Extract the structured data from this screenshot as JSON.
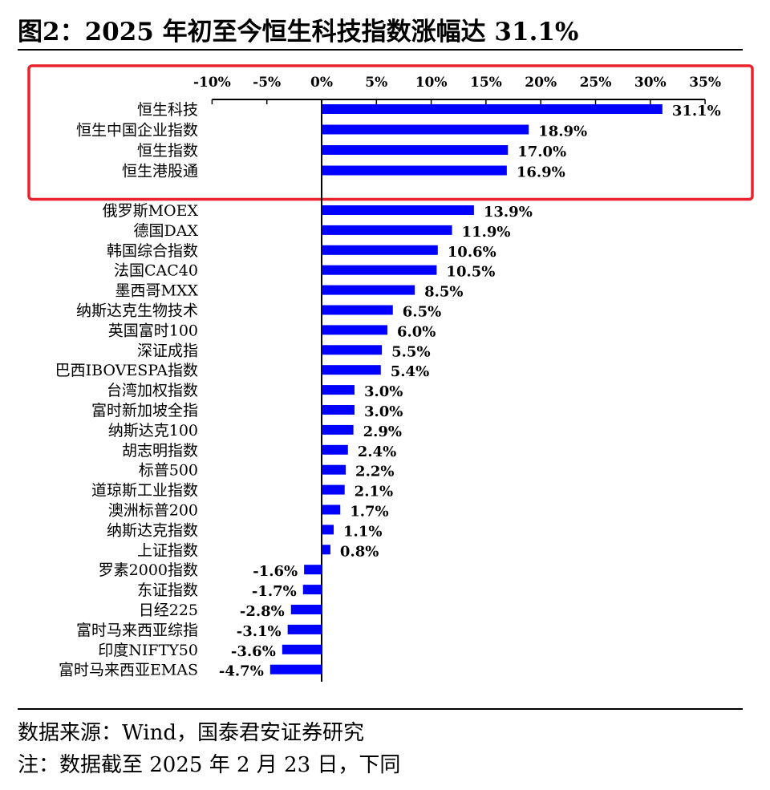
{
  "title": "图2：2025 年初至今恒生科技指数涨幅达 31.1%",
  "source": "数据来源：Wind，国泰君安证券研究",
  "note": "注：数据截至 2025 年 2 月 23 日，下同",
  "colors": {
    "bar": "#0000ff",
    "highlight_box": "#e8232b",
    "axis": "#000000"
  },
  "chart_data": {
    "type": "bar",
    "orientation": "horizontal",
    "xlim": [
      -10,
      35
    ],
    "x_ticks": [
      -10,
      -5,
      0,
      5,
      10,
      15,
      20,
      25,
      30,
      35
    ],
    "x_tick_labels": [
      "-10%",
      "-5%",
      "0%",
      "5%",
      "10%",
      "15%",
      "20%",
      "25%",
      "30%",
      "35%"
    ],
    "x_axis_position": "top",
    "grid": false,
    "highlighted_categories": [
      "恒生科技",
      "恒生中国企业指数",
      "恒生指数",
      "恒生港股通"
    ],
    "categories": [
      "恒生科技",
      "恒生中国企业指数",
      "恒生指数",
      "恒生港股通",
      "俄罗斯MOEX",
      "德国DAX",
      "韩国综合指数",
      "法国CAC40",
      "墨西哥MXX",
      "纳斯达克生物技术",
      "英国富时100",
      "深证成指",
      "巴西IBOVESPA指数",
      "台湾加权指数",
      "富时新加坡全指",
      "纳斯达克100",
      "胡志明指数",
      "标普500",
      "道琼斯工业指数",
      "澳洲标普200",
      "纳斯达克指数",
      "上证指数",
      "罗素2000指数",
      "东证指数",
      "日经225",
      "富时马来西亚综指",
      "印度NIFTY50",
      "富时马来西亚EMAS"
    ],
    "values": [
      31.1,
      18.9,
      17.0,
      16.9,
      13.9,
      11.9,
      10.6,
      10.5,
      8.5,
      6.5,
      6.0,
      5.5,
      5.4,
      3.0,
      3.0,
      2.9,
      2.4,
      2.2,
      2.1,
      1.7,
      1.1,
      0.8,
      -1.6,
      -1.7,
      -2.8,
      -3.1,
      -3.6,
      -4.7
    ],
    "value_labels": [
      "31.1%",
      "18.9%",
      "17.0%",
      "16.9%",
      "13.9%",
      "11.9%",
      "10.6%",
      "10.5%",
      "8.5%",
      "6.5%",
      "6.0%",
      "5.5%",
      "5.4%",
      "3.0%",
      "3.0%",
      "2.9%",
      "2.4%",
      "2.2%",
      "2.1%",
      "1.7%",
      "1.1%",
      "0.8%",
      "-1.6%",
      "-1.7%",
      "-2.8%",
      "-3.1%",
      "-3.6%",
      "-4.7%"
    ]
  }
}
